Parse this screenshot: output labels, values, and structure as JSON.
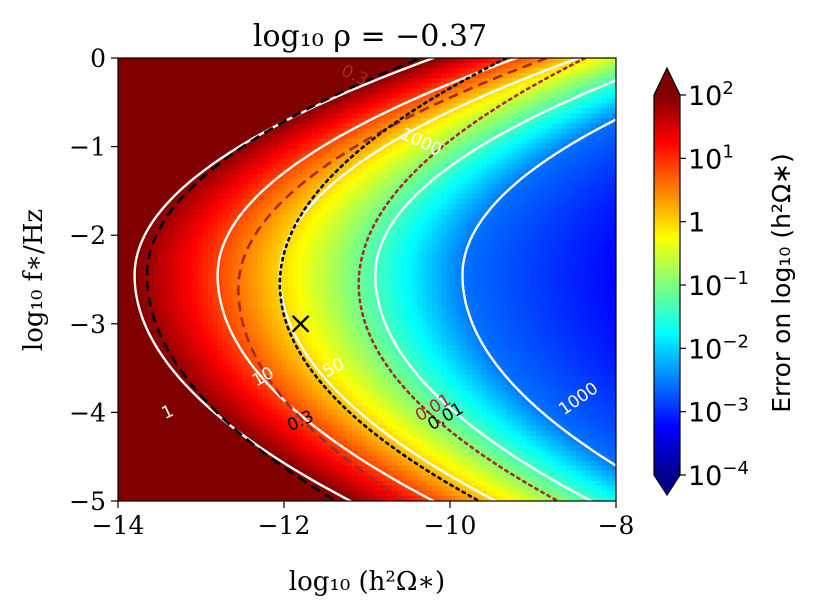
{
  "chart_data": {
    "type": "heatmap",
    "title": "log₁₀ ρ = −0.37",
    "xlabel": "log₁₀ (h²Ω∗)",
    "ylabel": "log₁₀ f∗/Hz",
    "colorbar_label": "Error on log₁₀ (h²Ω∗)",
    "xlim": [
      -14,
      -8
    ],
    "ylim": [
      -5,
      0
    ],
    "x_ticks": [
      -14,
      -12,
      -10,
      -8
    ],
    "x_tick_labels": [
      "−14",
      "−12",
      "−10",
      "−8"
    ],
    "y_ticks": [
      0,
      -1,
      -2,
      -3,
      -4,
      -5
    ],
    "y_tick_labels": [
      "0",
      "−1",
      "−2",
      "−3",
      "−4",
      "−5"
    ],
    "colorbar_range_log10": [
      -4,
      2
    ],
    "colorbar_ticks_log10": [
      2,
      1,
      0,
      -1,
      -2,
      -3,
      -4
    ],
    "colorbar_tick_labels": [
      {
        "base": "10",
        "exp": "2"
      },
      {
        "base": "10",
        "exp": "1"
      },
      {
        "base": "1",
        "exp": ""
      },
      {
        "base": "10",
        "exp": "−1"
      },
      {
        "base": "10",
        "exp": "−2"
      },
      {
        "base": "10",
        "exp": "−3"
      },
      {
        "base": "10",
        "exp": "−4"
      }
    ],
    "colormap": "jet",
    "marker": {
      "symbol": "x",
      "x": -11.8,
      "y": -3.0,
      "color": "#000000"
    },
    "contours": [
      {
        "label": "1",
        "style": "solid",
        "color": "#ffffff",
        "tip_x": -13.8,
        "tip_y": -2.45,
        "slope_upper": 0.6,
        "slope_lower": 0.4
      },
      {
        "label": "10",
        "style": "solid",
        "color": "#ffffff",
        "tip_x": -12.8,
        "tip_y": -2.45,
        "slope_upper": 0.6,
        "slope_lower": 0.4
      },
      {
        "label": "50",
        "style": "solid",
        "color": "#ffffff",
        "tip_x": -12.05,
        "tip_y": -2.45,
        "slope_upper": 0.6,
        "slope_lower": 0.4
      },
      {
        "label": "1000",
        "style": "solid",
        "color": "#ffffff",
        "tip_x": -10.9,
        "tip_y": -2.45,
        "slope_upper": 0.6,
        "slope_lower": 0.4
      },
      {
        "label": "",
        "style": "solid",
        "color": "#ffffff",
        "tip_x": -9.85,
        "tip_y": -2.45,
        "slope_upper": 0.6,
        "slope_lower": 0.4
      },
      {
        "label": "0.3",
        "style": "dashed",
        "color": "#000000",
        "tip_x": -13.65,
        "tip_y": -2.45,
        "slope_upper": 0.55,
        "slope_lower": 0.35
      },
      {
        "label": "0.3",
        "style": "dashed",
        "color": "#a52a2a",
        "tip_x": -12.55,
        "tip_y": -2.6,
        "slope_upper": 0.55,
        "slope_lower": 0.35
      },
      {
        "label": "0.01",
        "style": "dotted",
        "color": "#000000",
        "tip_x": -12.05,
        "tip_y": -2.55,
        "slope_upper": 0.42,
        "slope_lower": 0.4
      },
      {
        "label": "0.01",
        "style": "dotted",
        "color": "#a52a2a",
        "tip_x": -11.1,
        "tip_y": -2.55,
        "slope_upper": 0.42,
        "slope_lower": 0.4
      }
    ],
    "contour_labels": [
      {
        "text": "1",
        "x": -13.4,
        "y": -4.0,
        "color": "#ffffff",
        "angle": -25
      },
      {
        "text": "10",
        "x": -12.25,
        "y": -3.6,
        "color": "#ffffff",
        "angle": -30
      },
      {
        "text": "50",
        "x": -11.4,
        "y": -3.5,
        "color": "#ffffff",
        "angle": -28
      },
      {
        "text": "1000",
        "x": -10.35,
        "y": -0.95,
        "color": "#ffffff",
        "angle": 25
      },
      {
        "text": "1000",
        "x": -8.45,
        "y": -3.85,
        "color": "#ffffff",
        "angle": -35
      },
      {
        "text": "0.3",
        "x": -11.15,
        "y": -0.2,
        "color": "#a52a2a",
        "angle": 25
      },
      {
        "text": "0.3",
        "x": -11.8,
        "y": -4.1,
        "color": "#000000",
        "angle": -25
      },
      {
        "text": "0.01",
        "x": -10.05,
        "y": -4.05,
        "color": "#000000",
        "angle": -30
      },
      {
        "text": "0.01",
        "x": -10.2,
        "y": -3.95,
        "color": "#a52a2a",
        "angle": -30
      }
    ]
  }
}
